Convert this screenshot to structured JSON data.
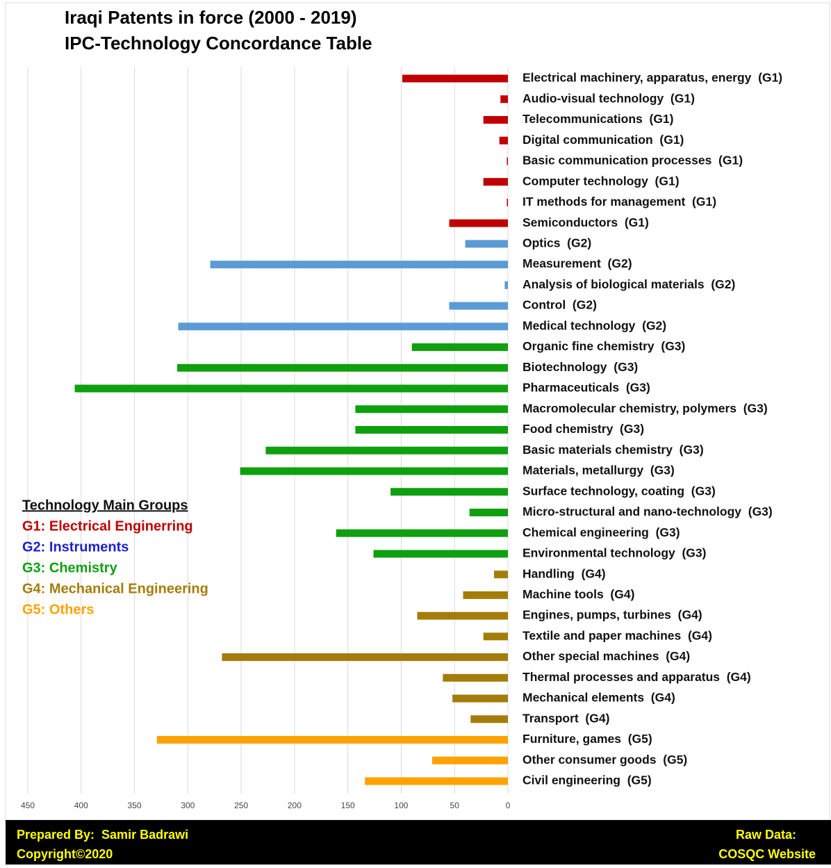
{
  "chart_data": {
    "type": "barh",
    "title": [
      "Iraqi Patents in force (2000 - 2019)",
      "IPC-Technology Concordance Table"
    ],
    "categories": [
      "Electrical machinery, apparatus, energy  (G1)",
      "Audio-visual technology  (G1)",
      "Telecommunications  (G1)",
      "Digital communication  (G1)",
      "Basic communication processes  (G1)",
      "Computer technology  (G1)",
      "IT methods for management  (G1)",
      "Semiconductors  (G1)",
      "Optics  (G2)",
      "Measurement  (G2)",
      "Analysis of biological materials  (G2)",
      "Control  (G2)",
      "Medical technology  (G2)",
      "Organic fine chemistry  (G3)",
      "Biotechnology  (G3)",
      "Pharmaceuticals  (G3)",
      "Macromolecular chemistry, polymers  (G3)",
      "Food chemistry  (G3)",
      "Basic materials chemistry  (G3)",
      "Materials, metallurgy  (G3)",
      "Surface technology, coating  (G3)",
      "Micro-structural and nano-technology  (G3)",
      "Chemical engineering  (G3)",
      "Environmental technology  (G3)",
      "Handling  (G4)",
      "Machine tools  (G4)",
      "Engines, pumps, turbines  (G4)",
      "Textile and paper machines  (G4)",
      "Other special machines  (G4)",
      "Thermal processes and apparatus  (G4)",
      "Mechanical elements  (G4)",
      "Transport  (G4)",
      "Furniture, games  (G5)",
      "Other consumer goods  (G5)",
      "Civil engineering  (G5)"
    ],
    "values": [
      99,
      7,
      23,
      8,
      1,
      23,
      1,
      55,
      40,
      279,
      3,
      55,
      309,
      90,
      310,
      406,
      143,
      143,
      227,
      251,
      110,
      36,
      161,
      126,
      13,
      42,
      85,
      23,
      268,
      61,
      52,
      35,
      329,
      71,
      134
    ],
    "colors": [
      "#c00000",
      "#c00000",
      "#c00000",
      "#c00000",
      "#c00000",
      "#c00000",
      "#c00000",
      "#c00000",
      "#5b9bd5",
      "#5b9bd5",
      "#5b9bd5",
      "#5b9bd5",
      "#5b9bd5",
      "#0ea00e",
      "#0ea00e",
      "#0ea00e",
      "#0ea00e",
      "#0ea00e",
      "#0ea00e",
      "#0ea00e",
      "#0ea00e",
      "#0ea00e",
      "#0ea00e",
      "#0ea00e",
      "#a47c0a",
      "#a47c0a",
      "#a47c0a",
      "#a47c0a",
      "#a47c0a",
      "#a47c0a",
      "#a47c0a",
      "#a47c0a",
      "#ffa200",
      "#ffa200",
      "#ffa200"
    ],
    "xlim": [
      0,
      450
    ],
    "xticks": [
      450,
      400,
      350,
      300,
      250,
      200,
      150,
      100,
      50,
      0
    ],
    "x_reversed": true,
    "grid": true,
    "legend": {
      "title": "Technology Main Groups",
      "items": [
        {
          "label": "G1: Electrical Enginerring",
          "color": "#c00000"
        },
        {
          "label": "G2: Instruments",
          "color": "#1f1fd0"
        },
        {
          "label": "G3: Chemistry",
          "color": "#0ea00e"
        },
        {
          "label": "G4: Mechanical Engineering",
          "color": "#a47c0a"
        },
        {
          "label": "G5: Others",
          "color": "#ffa200"
        }
      ]
    }
  },
  "footer": {
    "left": [
      "Prepared By:  Samir Badrawi",
      "Copyright©2020"
    ],
    "right": [
      "Raw Data:",
      "COSQC Website"
    ]
  }
}
